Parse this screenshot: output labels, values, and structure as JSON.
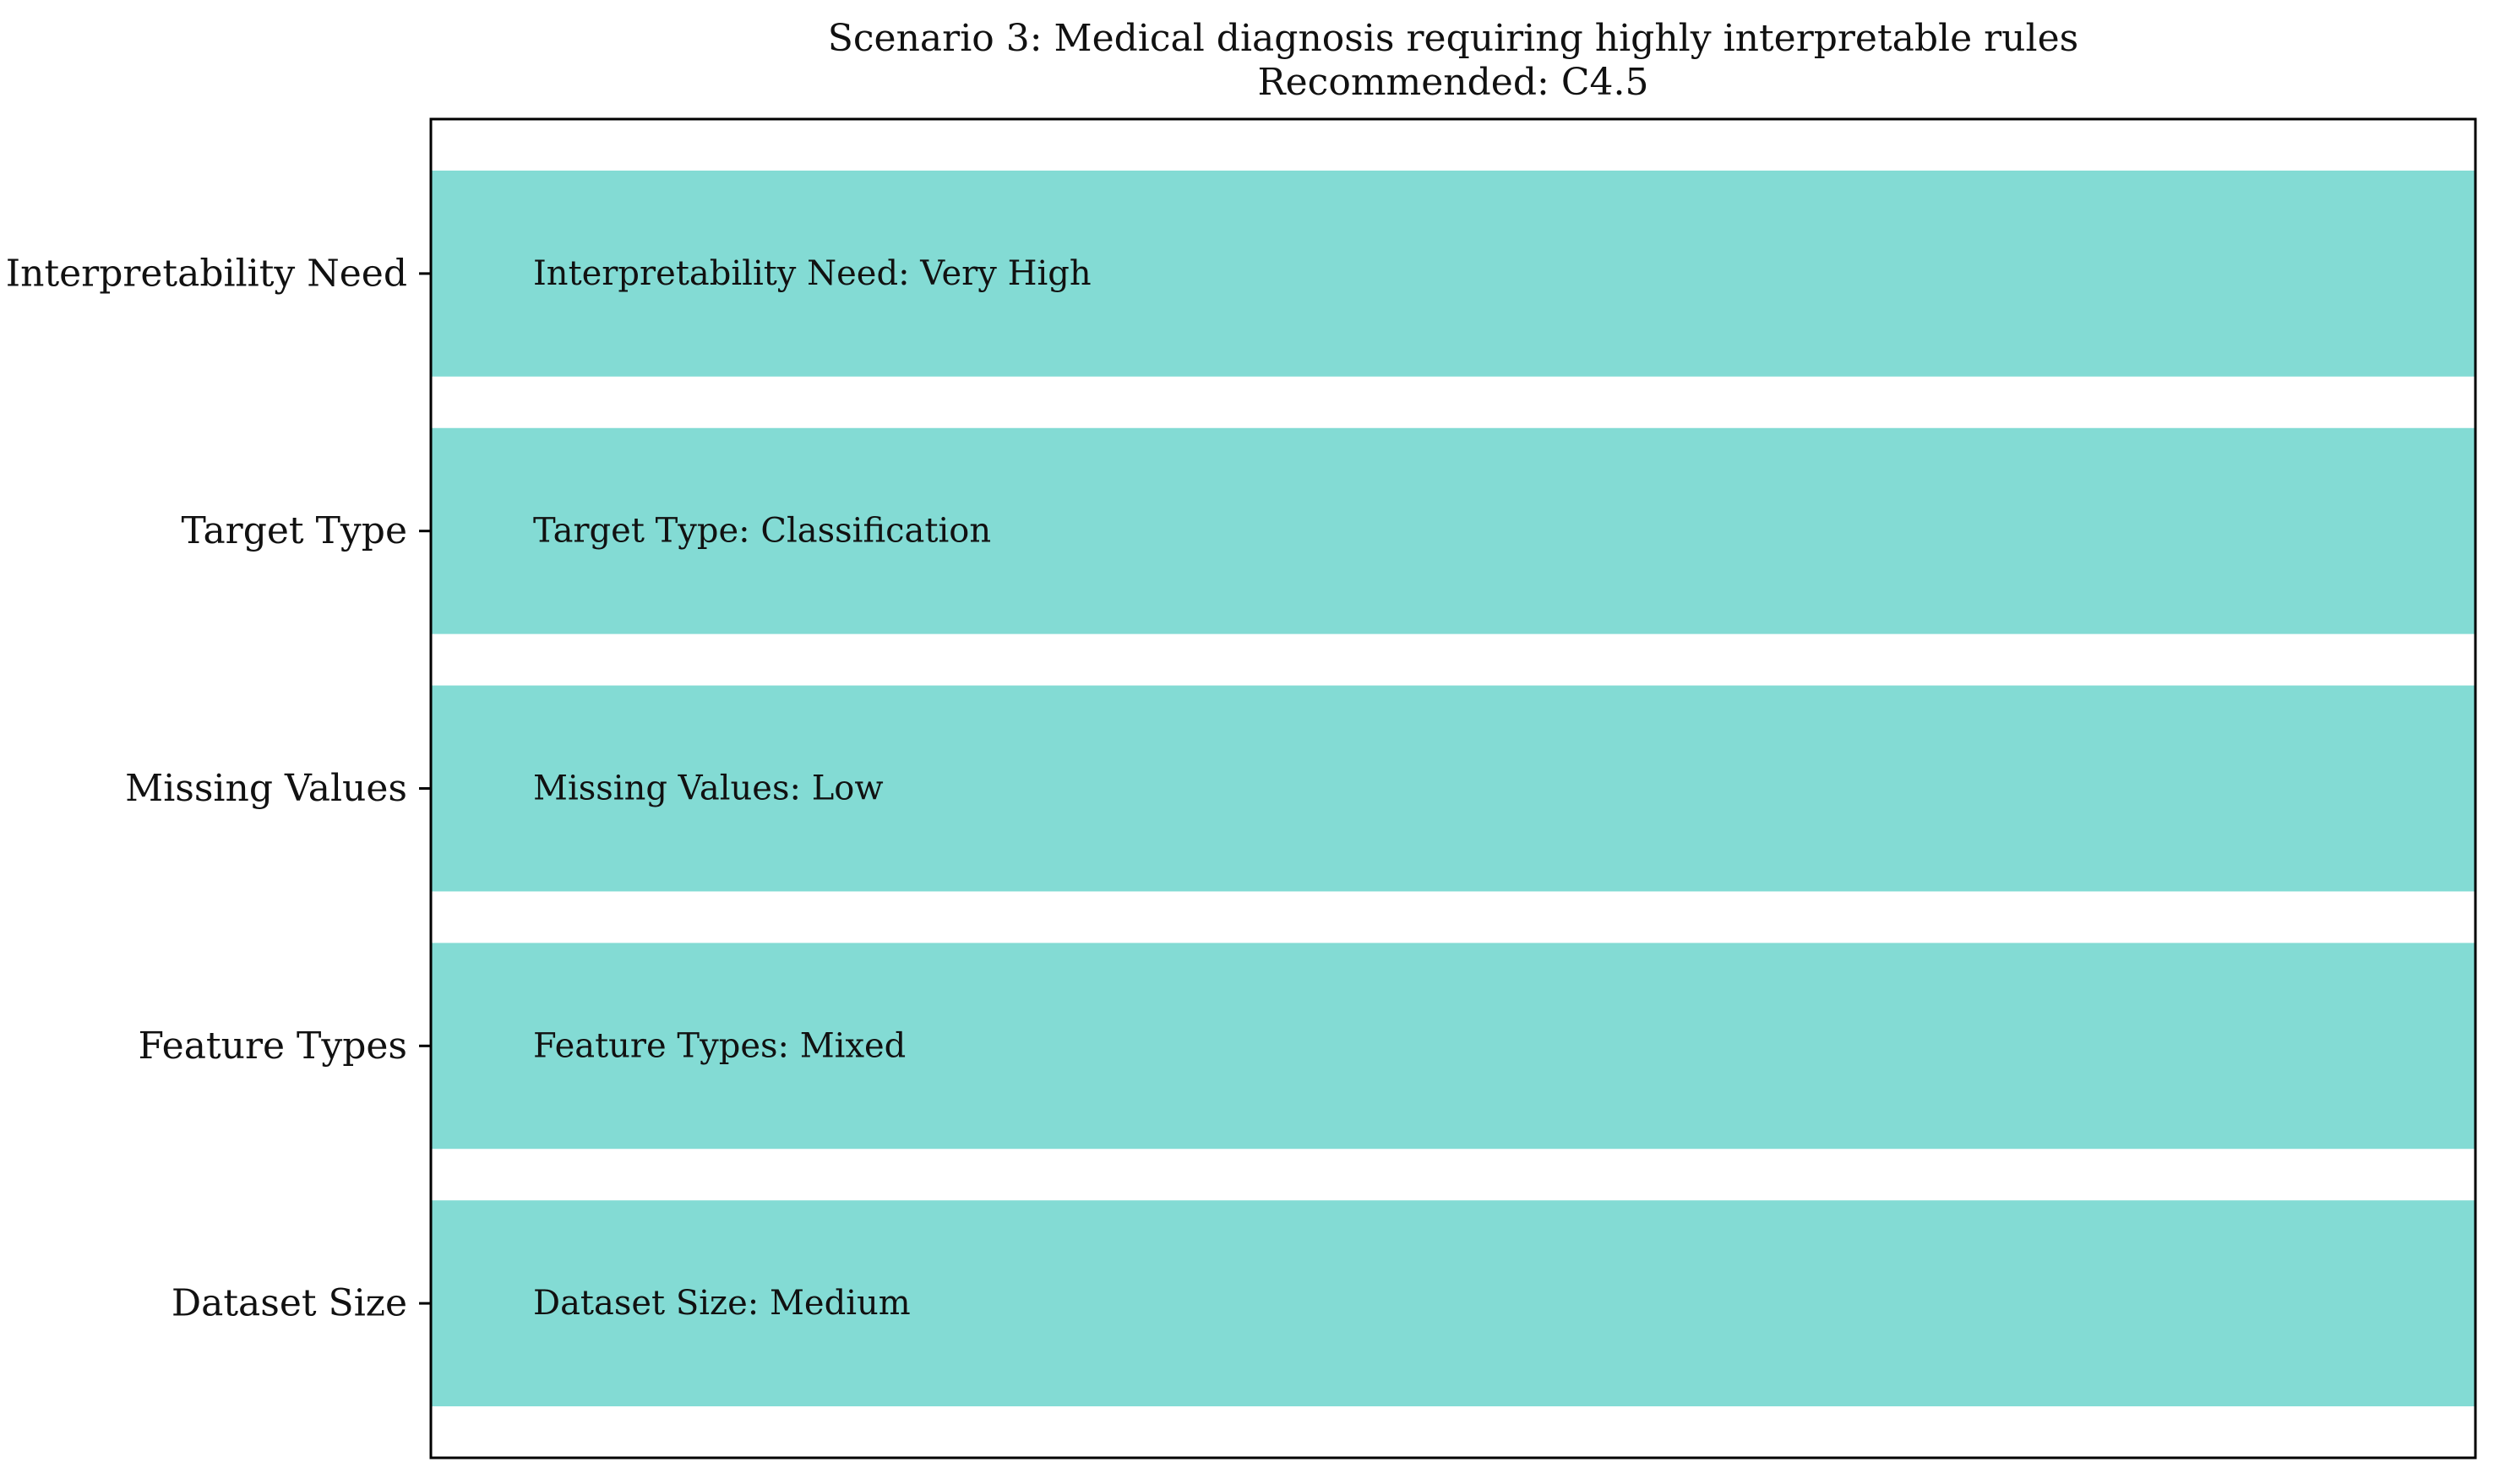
{
  "chart_data": {
    "type": "bar",
    "orientation": "horizontal",
    "title_lines": [
      "Scenario 3: Medical diagnosis requiring highly interpretable rules",
      "Recommended: C4.5"
    ],
    "xlabel": "",
    "ylabel": "",
    "categories": [
      "Dataset Size",
      "Feature Types",
      "Missing Values",
      "Target Type",
      "Interpretability Need"
    ],
    "values": [
      1,
      1,
      1,
      1,
      1
    ],
    "bar_labels": [
      "Dataset Size: Medium",
      "Feature Types: Mixed",
      "Missing Values: Low",
      "Target Type: Classification",
      "Interpretability Need: Very High"
    ],
    "xlim": [
      0,
      1
    ],
    "ylim": [
      -0.6,
      4.6
    ],
    "x_ticks_visible": false,
    "grid": false,
    "legend": "none",
    "bar_color": "#83dbd4"
  }
}
